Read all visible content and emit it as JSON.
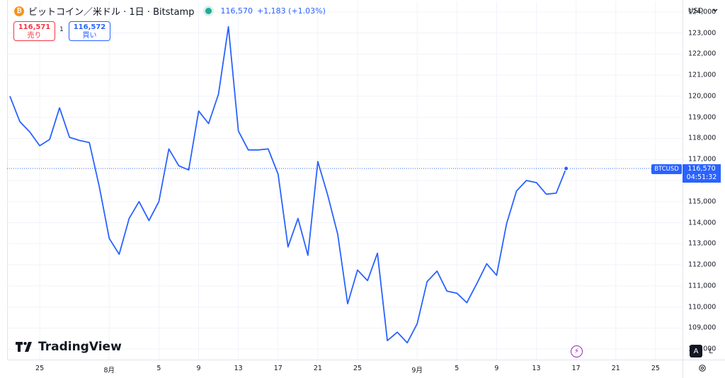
{
  "legend": {
    "coin_glyph": "₿",
    "symbol": "ビットコイン／米ドル · 1日 · Bitstamp",
    "last_price": "116,570",
    "change": "+1,183 (+1.03%)"
  },
  "quote": {
    "sell_value": "116,571",
    "sell_label": "売り",
    "spread": "1",
    "buy_value": "116,572",
    "buy_label": "買い"
  },
  "currency": "USD",
  "price_tag": {
    "symbol": "BTCUSD",
    "price": "116,570",
    "countdown": "04:51:32"
  },
  "branding": {
    "logo_text": "TradingView"
  },
  "buttons": {
    "auto": "A",
    "log": "L"
  },
  "colors": {
    "line": "#2962ff",
    "sell": "#f23645",
    "buy": "#2962ff",
    "grid": "#f0f3fa"
  },
  "chart_data": {
    "type": "line",
    "series": [
      {
        "values": [
          120000,
          118800,
          118300,
          117650,
          117950,
          119450,
          118050,
          117900,
          117800,
          115700,
          113250,
          112500,
          114200,
          115000,
          114100,
          115000,
          117500,
          116700,
          116500,
          119300,
          118700,
          120100,
          123300,
          118350,
          117450,
          117450,
          117500,
          116300,
          112850,
          114200,
          112450,
          116900,
          115300,
          113450,
          110150,
          111750,
          111250,
          112550,
          108400,
          108800,
          108300,
          109200,
          111200,
          111700,
          110750,
          110650,
          110200,
          111100,
          112050,
          111500,
          113950,
          115500,
          116000,
          115900,
          115350,
          115400,
          116570
        ]
      }
    ],
    "ylim": [
      107500,
      124500
    ],
    "y_ticks": [
      108000,
      109000,
      110000,
      111000,
      112000,
      113000,
      114000,
      115000,
      116000,
      117000,
      118000,
      119000,
      120000,
      121000,
      122000,
      123000,
      124000
    ],
    "y_tick_labels": [
      "108,000",
      "109,000",
      "110,000",
      "111,000",
      "112,000",
      "113,000",
      "114,000",
      "115,000",
      "116,000",
      "117,000",
      "118,000",
      "119,000",
      "120,000",
      "121,000",
      "122,000",
      "123,000",
      "124,000"
    ],
    "x_tick_labels": [
      "25",
      "8月",
      "5",
      "9",
      "13",
      "17",
      "21",
      "25",
      "9月",
      "5",
      "9",
      "13",
      "17",
      "21",
      "25"
    ],
    "x_tick_index": [
      3,
      10,
      15,
      19,
      23,
      27,
      31,
      35,
      41,
      45,
      49,
      53,
      57,
      61,
      65
    ],
    "x_total_slots": 68,
    "grid": true
  }
}
